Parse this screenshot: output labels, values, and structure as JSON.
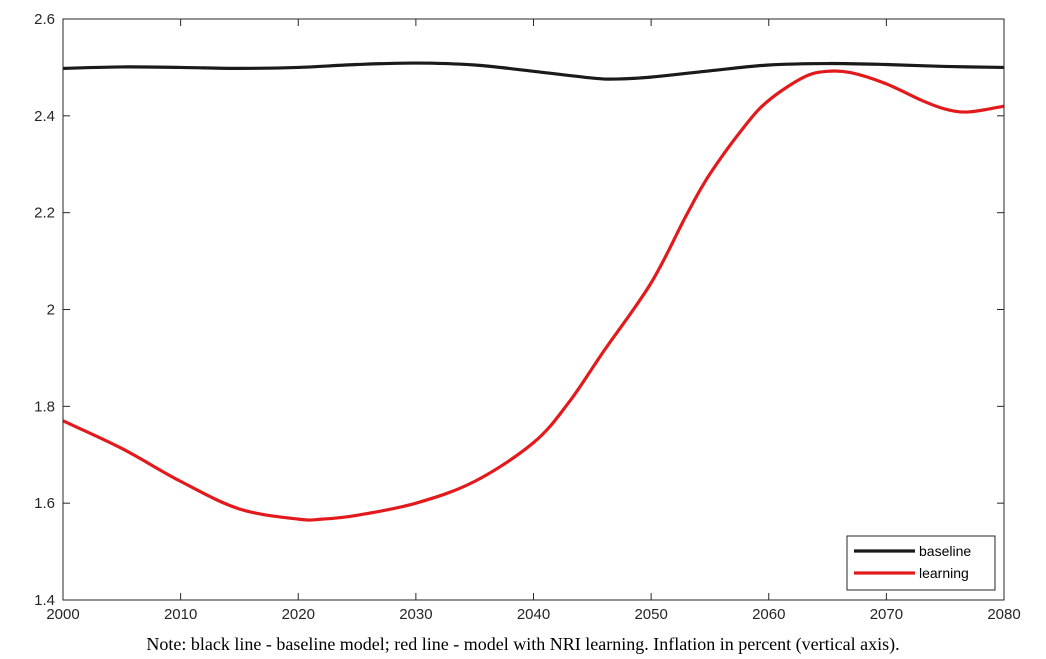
{
  "note": "Note: black line - baseline model; red line - model with NRI learning. Inflation in percent (vertical axis).",
  "chart_data": {
    "type": "line",
    "title": "",
    "xlabel": "",
    "ylabel": "",
    "xlim": [
      2000,
      2080
    ],
    "ylim": [
      1.4,
      2.6
    ],
    "xticks": [
      2000,
      2010,
      2020,
      2030,
      2040,
      2050,
      2060,
      2070,
      2080
    ],
    "yticks": [
      1.4,
      1.6,
      1.8,
      2.0,
      2.2,
      2.4,
      2.6
    ],
    "ytick_labels": [
      "1.4",
      "1.6",
      "1.8",
      "2",
      "2.2",
      "2.4",
      "2.6"
    ],
    "grid": false,
    "legend_position": "bottom-right",
    "series": [
      {
        "name": "baseline",
        "color": "#1a1a1a",
        "x": [
          2000,
          2005,
          2010,
          2015,
          2020,
          2025,
          2030,
          2035,
          2040,
          2045,
          2047,
          2050,
          2055,
          2060,
          2065,
          2070,
          2075,
          2080
        ],
        "y": [
          2.498,
          2.501,
          2.5,
          2.498,
          2.5,
          2.506,
          2.509,
          2.505,
          2.492,
          2.478,
          2.476,
          2.48,
          2.493,
          2.505,
          2.508,
          2.506,
          2.502,
          2.5
        ]
      },
      {
        "name": "learning",
        "color": "#e31a1c",
        "x": [
          2000,
          2005,
          2010,
          2015,
          2020,
          2022,
          2025,
          2030,
          2035,
          2040,
          2043,
          2046,
          2050,
          2053,
          2055,
          2058,
          2060,
          2063,
          2065,
          2067,
          2070,
          2073,
          2075,
          2077,
          2080
        ],
        "y": [
          1.77,
          1.713,
          1.645,
          1.588,
          1.567,
          1.567,
          1.575,
          1.6,
          1.645,
          1.725,
          1.808,
          1.915,
          2.055,
          2.195,
          2.28,
          2.38,
          2.432,
          2.48,
          2.492,
          2.489,
          2.466,
          2.432,
          2.414,
          2.408,
          2.42
        ]
      }
    ]
  }
}
